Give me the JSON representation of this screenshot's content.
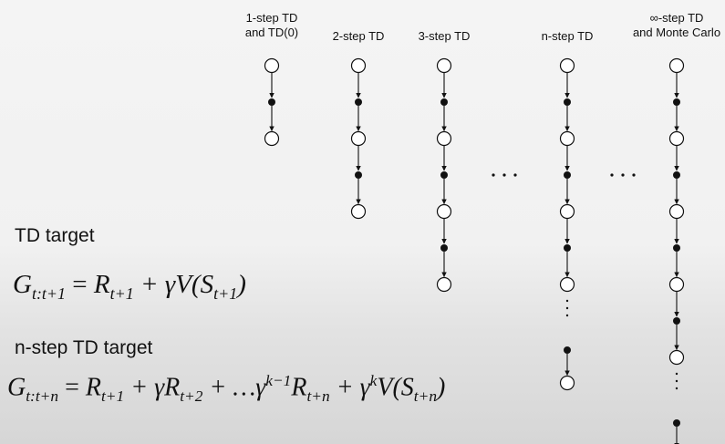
{
  "columns": [
    {
      "label": "1-step TD\nand TD(0)",
      "steps": 1,
      "terminal": "state"
    },
    {
      "label": "2-step TD",
      "steps": 2,
      "terminal": "state"
    },
    {
      "label": "3-step TD",
      "steps": 3,
      "terminal": "state"
    },
    {
      "label": "n-step TD",
      "steps": 4,
      "terminal": "state"
    },
    {
      "label": "∞-step TD\nand Monte Carlo",
      "steps": 5,
      "terminal": "square"
    }
  ],
  "ellipsis_horizontal": "· · ·",
  "td_target": {
    "heading": "TD target",
    "equation": {
      "lhs": "G",
      "lhs_sub": "t:t+1",
      "eq": " = ",
      "R": "R",
      "R_sub": "t+1",
      "plus_gamma_V": " + γV(S",
      "S_sub": "t+1",
      "close": ")"
    }
  },
  "nstep_target": {
    "heading": "n-step TD target",
    "equation": {
      "lhs": "G",
      "lhs_sub": "t:t+n",
      "eq": " = ",
      "t1": "R",
      "t1_sub": "t+1",
      "t2": " + γR",
      "t2_sub": "t+2",
      "t3": " + …γ",
      "t3_sup": "k−1",
      "t4": "R",
      "t4_sub": "t+n",
      "t5": " + γ",
      "t5_sup": "k",
      "t6": "V(S",
      "t6_sub": "t+n",
      "close": ")"
    }
  },
  "colors": {
    "stroke": "#111111",
    "terminal_fill": "#9a9a9a",
    "state_fill": "#ffffff"
  }
}
